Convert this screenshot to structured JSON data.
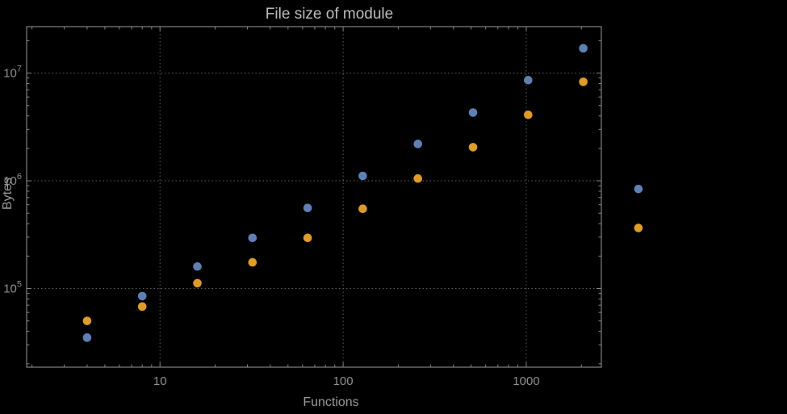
{
  "colors": {
    "background": "#000000",
    "frame": "#828282",
    "grid": "#5e5e5e",
    "title_text": "#bdbdbd",
    "axis_label_text": "#9a9a9a",
    "tick_label_text": "#8f8f8f",
    "series1": "#5e81b5",
    "series2": "#e19c24"
  },
  "chart_data": {
    "type": "scatter",
    "title": "File size of module",
    "xlabel": "Functions",
    "ylabel": "Bytes",
    "x_scale": "log",
    "y_scale": "log",
    "grid": "dotted-major",
    "legend": "none",
    "xlim": [
      1.87,
      2570
    ],
    "ylim": [
      18600,
      27000000
    ],
    "x": [
      4,
      8,
      16,
      32,
      64,
      128,
      256,
      512,
      1024,
      2048,
      4096
    ],
    "series": [
      {
        "name": "series-1",
        "color": "#5e81b5",
        "values": [
          35000,
          85000,
          160000,
          295000,
          560000,
          1110000,
          2200000,
          4300000,
          8600000,
          17000000,
          840000
        ]
      },
      {
        "name": "series-2",
        "color": "#e19c24",
        "values": [
          50000,
          68000,
          112000,
          175000,
          295000,
          550000,
          1050000,
          2050000,
          4100000,
          8300000,
          365000
        ]
      }
    ],
    "x_ticks": [
      {
        "value": 10,
        "label": "10"
      },
      {
        "value": 100,
        "label": "100"
      },
      {
        "value": 1000,
        "label": "1000"
      }
    ],
    "y_ticks": [
      {
        "value": 100000,
        "base": "10",
        "exp": "5"
      },
      {
        "value": 1000000,
        "base": "10",
        "exp": "6"
      },
      {
        "value": 10000000,
        "base": "10",
        "exp": "7"
      }
    ]
  }
}
